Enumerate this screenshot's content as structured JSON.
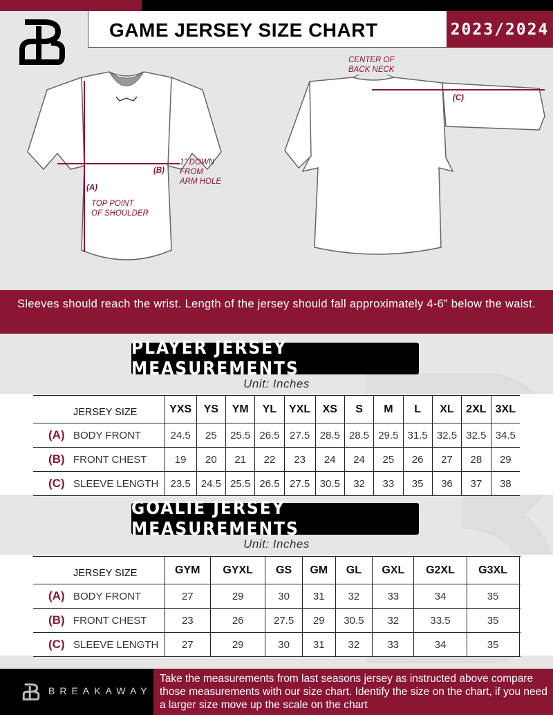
{
  "header": {
    "title": "GAME JERSEY SIZE CHART",
    "season": "2023/2024"
  },
  "diagram": {
    "front_notes": {
      "a": "(A)",
      "a_desc": "TOP POINT\nOF SHOULDER",
      "b": "(B)",
      "b_desc": "1\" DOWN\nFROM\nARM HOLE"
    },
    "back_notes": {
      "c": "(C)",
      "c_desc": "CENTER OF\nBACK NECK"
    }
  },
  "instructions": "Sleeves should reach the wrist. Length of the jersey should fall approximately 4-6” below the waist.",
  "player": {
    "title": "PLAYER JERSEY MEASUREMENTS",
    "unit": "Unit: Inches",
    "size_label": "JERSEY SIZE",
    "sizes": [
      "YXS",
      "YS",
      "YM",
      "YL",
      "YXL",
      "XS",
      "S",
      "M",
      "L",
      "XL",
      "2XL",
      "3XL"
    ],
    "rows": [
      {
        "letter": "(A)",
        "label": "BODY FRONT",
        "values": [
          "24.5",
          "25",
          "25.5",
          "26.5",
          "27.5",
          "28.5",
          "28.5",
          "29.5",
          "31.5",
          "32.5",
          "32.5",
          "34.5"
        ]
      },
      {
        "letter": "(B)",
        "label": "FRONT CHEST",
        "values": [
          "19",
          "20",
          "21",
          "22",
          "23",
          "24",
          "24",
          "25",
          "26",
          "27",
          "28",
          "29"
        ]
      },
      {
        "letter": "(C)",
        "label": "SLEEVE LENGTH",
        "values": [
          "23.5",
          "24.5",
          "25.5",
          "26.5",
          "27.5",
          "30.5",
          "32",
          "33",
          "35",
          "36",
          "37",
          "38"
        ]
      }
    ]
  },
  "goalie": {
    "title": "GOALIE JERSEY MEASUREMENTS",
    "unit": "Unit: Inches",
    "size_label": "JERSEY SIZE",
    "sizes": [
      "GYM",
      "GYXL",
      "GS",
      "GM",
      "GL",
      "GXL",
      "G2XL",
      "G3XL",
      ""
    ],
    "rows": [
      {
        "letter": "(A)",
        "label": "BODY FRONT",
        "values": [
          "27",
          "29",
          "30",
          "31",
          "32",
          "33",
          "34",
          "35",
          ""
        ]
      },
      {
        "letter": "(B)",
        "label": "FRONT CHEST",
        "values": [
          "23",
          "26",
          "27.5",
          "29",
          "30.5",
          "32",
          "33.5",
          "35",
          ""
        ]
      },
      {
        "letter": "(C)",
        "label": "SLEEVE LENGTH",
        "values": [
          "27",
          "29",
          "30",
          "31",
          "32",
          "33",
          "34",
          "35",
          ""
        ]
      }
    ]
  },
  "footer": {
    "brand": "BREAKAWAY",
    "text": "Take the measurements from last seasons jersey as instructed above compare those measurements  with our size chart. Identify the size on the chart, if you need a larger size move up the scale on the chart"
  },
  "colors": {
    "accent": "#8a1634",
    "background": "#e6e6e7",
    "dark": "#000000"
  }
}
